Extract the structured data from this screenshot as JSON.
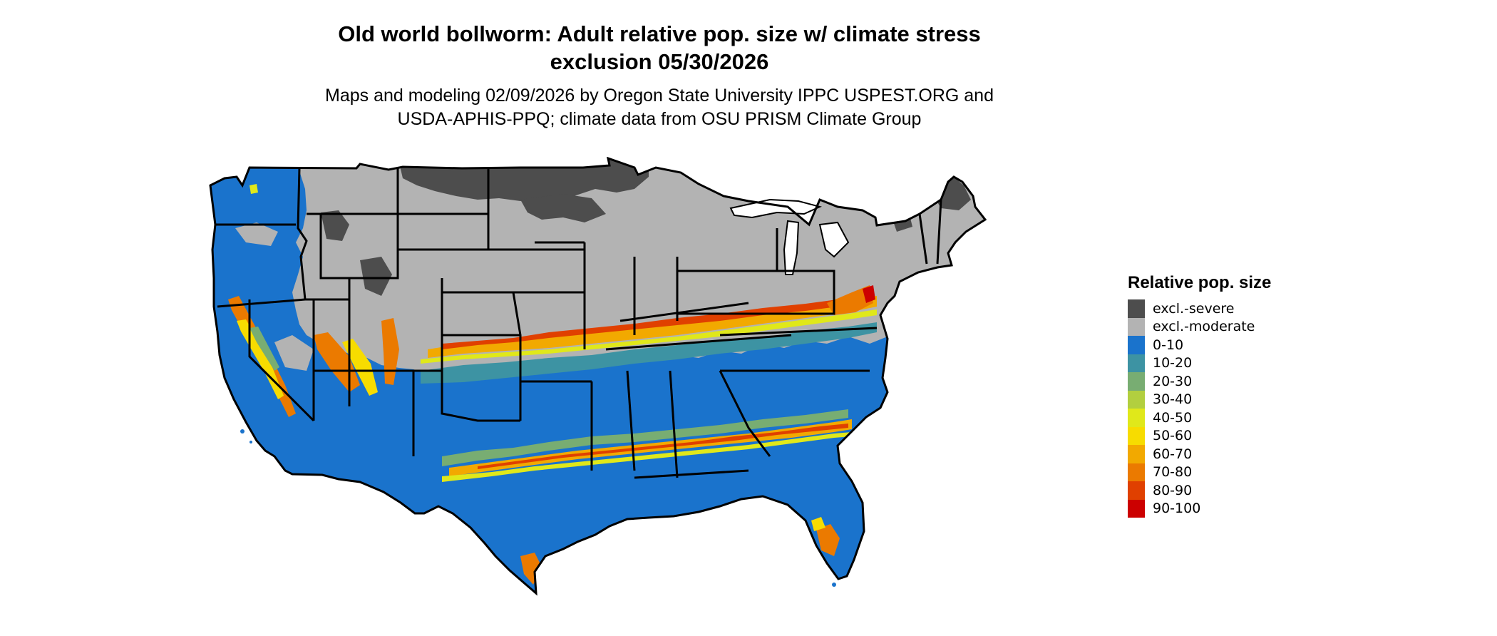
{
  "title": {
    "line1": "Old world bollworm: Adult relative pop. size w/ climate stress",
    "line2": "exclusion 05/30/2026"
  },
  "subtitle": {
    "line1": "Maps and modeling 02/09/2026 by Oregon State University IPPC USPEST.ORG and",
    "line2": "USDA-APHIS-PPQ; climate data from OSU PRISM Climate Group"
  },
  "legend": {
    "title": "Relative pop. size",
    "items": [
      {
        "label": "excl.-severe",
        "color": "#4d4d4d"
      },
      {
        "label": "excl.-moderate",
        "color": "#b3b3b3"
      },
      {
        "label": "0-10",
        "color": "#1a73cc"
      },
      {
        "label": "10-20",
        "color": "#3d93a3"
      },
      {
        "label": "20-30",
        "color": "#78ad72"
      },
      {
        "label": "30-40",
        "color": "#b2cf3f"
      },
      {
        "label": "40-50",
        "color": "#e0e81a"
      },
      {
        "label": "50-60",
        "color": "#f7dc00"
      },
      {
        "label": "60-70",
        "color": "#f2a900"
      },
      {
        "label": "70-80",
        "color": "#eb7a00"
      },
      {
        "label": "80-90",
        "color": "#e04000"
      },
      {
        "label": "90-100",
        "color": "#cc0000"
      }
    ]
  },
  "map": {
    "region": "Contiguous United States",
    "style": {
      "border_color": "#000000",
      "ocean_color": "#ffffff"
    }
  }
}
